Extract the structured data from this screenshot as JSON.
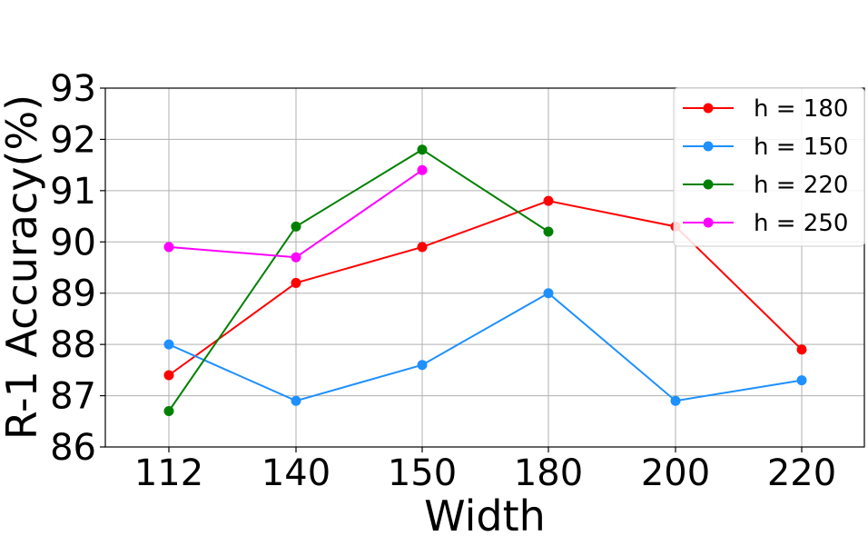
{
  "chart_data": {
    "type": "line",
    "title": "",
    "xlabel": "Width",
    "ylabel": "R-1 Accuracy(%)",
    "categories": [
      "112",
      "140",
      "150",
      "180",
      "200",
      "220"
    ],
    "yticks": [
      "86",
      "87",
      "88",
      "89",
      "90",
      "91",
      "92",
      "93"
    ],
    "ylim": [
      86,
      93
    ],
    "grid": true,
    "legend_position": "top-right",
    "series": [
      {
        "name": "h = 180",
        "color": "#ff0000",
        "values": [
          87.4,
          89.2,
          89.9,
          90.8,
          90.3,
          87.9
        ]
      },
      {
        "name": "h = 150",
        "color": "#1e90ff",
        "values": [
          88.0,
          86.9,
          87.6,
          89.0,
          86.9,
          87.3
        ]
      },
      {
        "name": "h = 220",
        "color": "#008000",
        "values": [
          86.7,
          90.3,
          91.8,
          90.2,
          null,
          null
        ]
      },
      {
        "name": "h = 250",
        "color": "#ff00ff",
        "values": [
          89.9,
          89.7,
          91.4,
          null,
          null,
          null
        ]
      }
    ]
  }
}
